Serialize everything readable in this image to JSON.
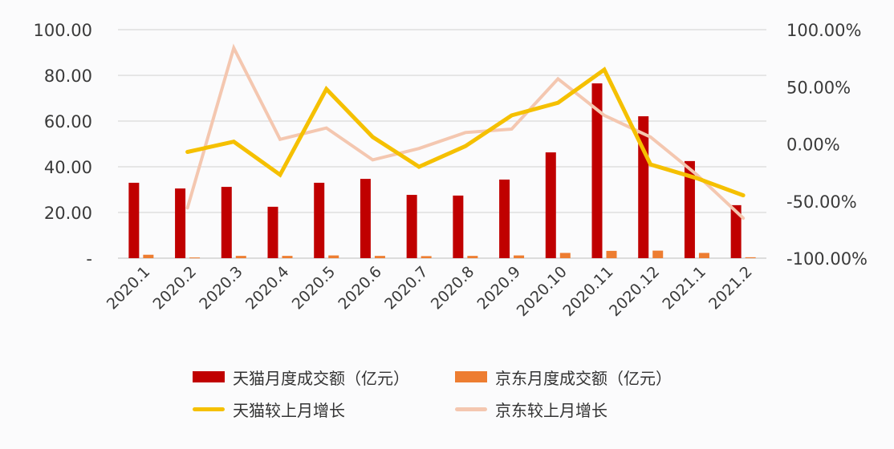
{
  "chart_data": {
    "type": "bar+line",
    "title": "",
    "categories": [
      "2020.1",
      "2020.2",
      "2020.3",
      "2020.4",
      "2020.5",
      "2020.6",
      "2020.7",
      "2020.8",
      "2020.9",
      "2020.10",
      "2020.11",
      "2020.12",
      "2021.1",
      "2021.2"
    ],
    "series": [
      {
        "name": "天猫月度成交额（亿元）",
        "type": "bar",
        "axis": "left",
        "color": "#c00000",
        "values": [
          33.0,
          30.5,
          31.2,
          22.5,
          33.0,
          34.7,
          27.7,
          27.4,
          34.4,
          46.3,
          76.5,
          62.1,
          42.5,
          23.2
        ]
      },
      {
        "name": "京东月度成交额（亿元）",
        "type": "bar",
        "axis": "left",
        "color": "#ed7d31",
        "values": [
          1.5,
          0.3,
          1.0,
          1.0,
          1.2,
          1.0,
          0.9,
          1.0,
          1.2,
          2.3,
          3.2,
          3.3,
          2.3,
          0.4
        ]
      },
      {
        "name": "天猫较上月增长",
        "type": "line",
        "axis": "right",
        "color": "#f5c000",
        "values": [
          null,
          -7,
          2,
          -27,
          48,
          6,
          -20,
          -2,
          25,
          36,
          65,
          -18,
          -30,
          -45
        ]
      },
      {
        "name": "京东较上月增长",
        "type": "line",
        "axis": "right",
        "color": "#f4c7b0",
        "values": [
          null,
          -56,
          84,
          4,
          14,
          -14,
          -4,
          10,
          13,
          57,
          25,
          6,
          -27,
          -65
        ]
      }
    ],
    "left_axis": {
      "ticks": [
        "-",
        "20.00",
        "40.00",
        "60.00",
        "80.00",
        "100.00"
      ],
      "ylim": [
        0,
        100
      ]
    },
    "right_axis": {
      "ticks": [
        "-100.00%",
        "-50.00%",
        "0.00%",
        "50.00%",
        "100.00%"
      ],
      "ylim": [
        -100,
        100
      ]
    },
    "xlabel": "",
    "ylabel": "",
    "grid": true,
    "legend_position": "bottom"
  },
  "legend": {
    "items": [
      {
        "label": "天猫月度成交额（亿元）",
        "color": "#c00000",
        "kind": "bar"
      },
      {
        "label": "京东月度成交额（亿元）",
        "color": "#ed7d31",
        "kind": "bar"
      },
      {
        "label": "天猫较上月增长",
        "color": "#f5c000",
        "kind": "line"
      },
      {
        "label": "京东较上月增长",
        "color": "#f4c7b0",
        "kind": "line"
      }
    ]
  }
}
